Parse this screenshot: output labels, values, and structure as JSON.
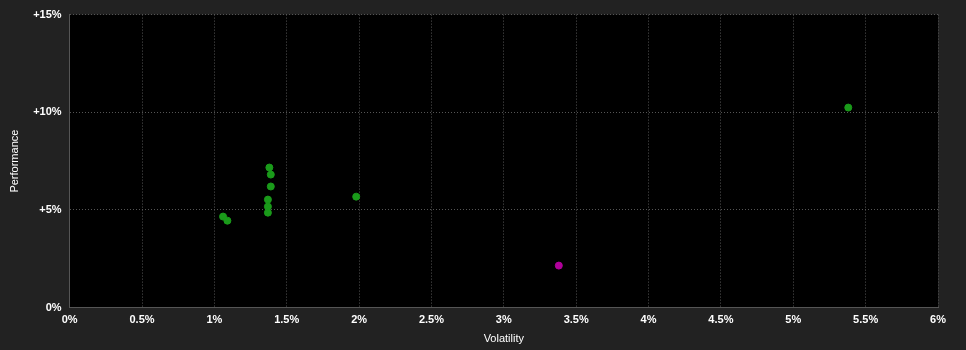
{
  "chart_data": {
    "type": "scatter",
    "x_label": "Volatility",
    "y_label": "Performance",
    "xlim": [
      0,
      6
    ],
    "xticks": [
      {
        "value": 0,
        "label": "0%"
      },
      {
        "value": 0.5,
        "label": "0.5%"
      },
      {
        "value": 1,
        "label": "1%"
      },
      {
        "value": 1.5,
        "label": "1.5%"
      },
      {
        "value": 2,
        "label": "2%"
      },
      {
        "value": 2.5,
        "label": "2.5%"
      },
      {
        "value": 3,
        "label": "3%"
      },
      {
        "value": 3.5,
        "label": "3.5%"
      },
      {
        "value": 4,
        "label": "4%"
      },
      {
        "value": 4.5,
        "label": "4.5%"
      },
      {
        "value": 5,
        "label": "5%"
      },
      {
        "value": 5.5,
        "label": "5.5%"
      },
      {
        "value": 6,
        "label": "6%"
      }
    ],
    "ylim": [
      0,
      15
    ],
    "yticks": [
      {
        "value": 0,
        "label": "0%"
      },
      {
        "value": 5,
        "label": "+5%"
      },
      {
        "value": 10,
        "label": "+10%"
      },
      {
        "value": 15,
        "label": "+15%"
      }
    ],
    "grid": true,
    "series": [
      {
        "color": "#1a9a1a",
        "marker": "circle",
        "x": [
          1.06,
          1.09,
          1.38,
          1.39,
          1.39,
          1.37,
          1.37,
          1.37,
          1.98,
          5.38
        ],
        "values": [
          4.66,
          4.45,
          7.17,
          6.81,
          6.2,
          5.53,
          5.17,
          4.86,
          5.68,
          10.24
        ]
      },
      {
        "color": "#b0009a",
        "marker": "circle",
        "x": [
          3.38
        ],
        "values": [
          2.15
        ]
      }
    ]
  }
}
